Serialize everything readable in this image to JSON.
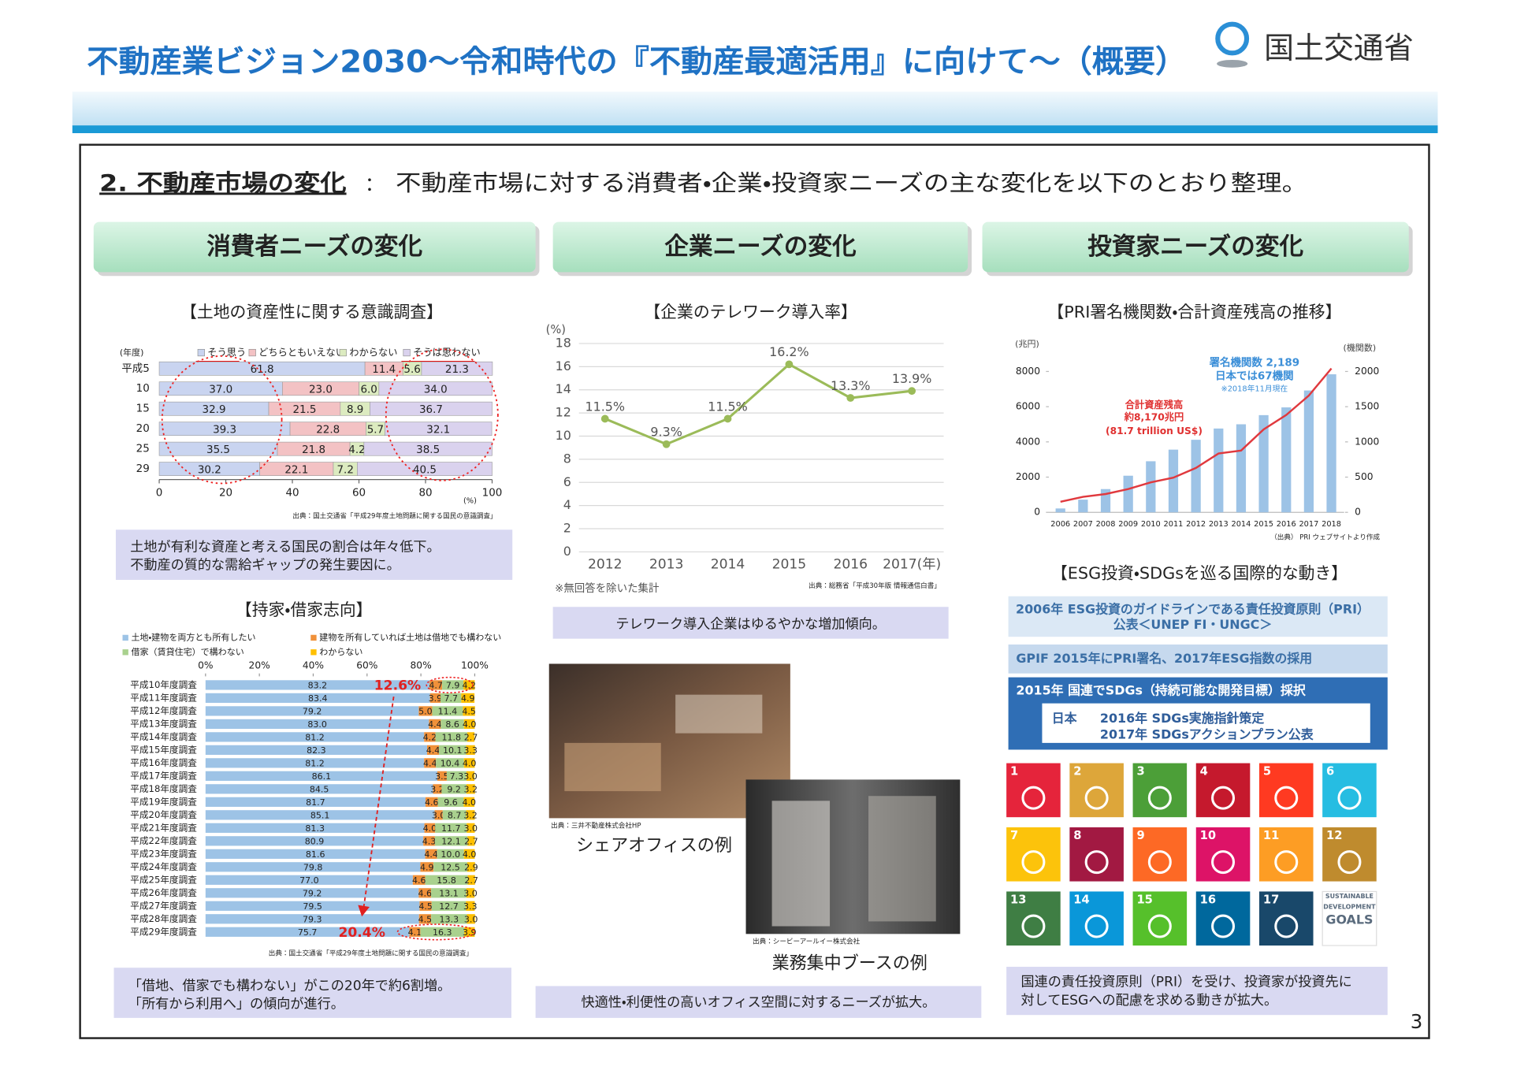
{
  "header": {
    "title": "不動産業ビジョン2030～令和時代の『不動産最適活用』に向けて～（概要）",
    "ministry": "国土交通省"
  },
  "page_number": "3",
  "section": {
    "heading": "2. 不動産市場の変化",
    "separator": "：",
    "description": "不動産市場に対する消費者・企業・投資家ニーズの主な変化を以下のとおり整理。"
  },
  "columns": [
    {
      "heading": "消費者ニーズの変化"
    },
    {
      "heading": "企業ニーズの変化"
    },
    {
      "heading": "投資家ニーズの変化"
    }
  ],
  "summaries": {
    "land": [
      "土地が有利な資産と考える国民の割合は年々低下。",
      "不動産の質的な需給ギャップの発生要因に。"
    ],
    "ownership": [
      "「借地、借家でも構わない」がこの20年で約6割増。",
      "「所有から利用へ」の傾向が進行。"
    ],
    "telework": [
      "テレワーク導入企業はゆるやかな増加傾向。"
    ],
    "office": [
      "快適性・利便性の高いオフィス空間に対するニーズが拡大。"
    ],
    "investor": [
      "国連の責任投資原則（PRI）を受け、投資家が投資先に",
      "対してESGへの配慮を求める動きが拡大。"
    ]
  },
  "photos": [
    {
      "source": "出典：三井不動産株式会社HP",
      "caption": "シェアオフィスの例"
    },
    {
      "source": "出典：シービーアールイー株式会社",
      "caption": "業務集中ブースの例"
    }
  ],
  "esg": {
    "title": "【ESG投資・SDGsを巡る国際的な動き】",
    "item1": [
      "2006年 ESG投資のガイドラインである責任投資原則（PRI）",
      "公表＜UNEP FI・UNGC＞"
    ],
    "item2": "GPIF 2015年にPRI署名、2017年ESG指数の採用",
    "item3": "2015年 国連でSDGs（持続可能な開発目標）採択",
    "japan": {
      "label": "日本",
      "lines": [
        "2016年 SDGs実施指針策定",
        "2017年 SDGsアクションプラン公表"
      ]
    },
    "sdg_goals": [
      "1",
      "2",
      "3",
      "4",
      "5",
      "6",
      "7",
      "8",
      "9",
      "10",
      "11",
      "12",
      "13",
      "14",
      "15",
      "16",
      "17"
    ],
    "sdg_logo": [
      "SUSTAINABLE",
      "DEVELOPMENT",
      "GOALS"
    ]
  },
  "chart_data": [
    {
      "type": "bar",
      "stacked": true,
      "horizontal": true,
      "title": "【土地の資産性に関する意識調査】",
      "category_label": "(年度)",
      "x_label": "(%)",
      "source": "出典：国土交通省「平成29年度土地問題に関する国民の意識調査」",
      "categories": [
        "平成5",
        "10",
        "15",
        "20",
        "25",
        "29"
      ],
      "xlim": [
        0,
        100
      ],
      "xticks": [
        0,
        20,
        40,
        60,
        80,
        100
      ],
      "series": [
        {
          "name": "そう思う",
          "color": "#c9d4f0",
          "values": [
            61.8,
            37.0,
            32.9,
            39.3,
            35.5,
            30.2
          ],
          "value_labels": [
            "61.8",
            "37.0",
            "32.9",
            "39.3",
            "35.5",
            "30.2"
          ]
        },
        {
          "name": "どちらともいえない",
          "color": "#f3c2c4",
          "values": [
            11.4,
            23.0,
            21.5,
            22.8,
            21.8,
            22.1
          ],
          "value_labels": [
            "11.4",
            "23.0",
            "21.5",
            "22.8",
            "21.8",
            "22.1"
          ]
        },
        {
          "name": "わからない",
          "color": "#dcebc0",
          "values": [
            5.6,
            6.0,
            8.9,
            5.7,
            4.2,
            7.2
          ],
          "value_labels": [
            "5.6",
            "6.0",
            "8.9",
            "5.7",
            "4.2",
            "7.2"
          ]
        },
        {
          "name": "そうは思わない",
          "color": "#dad2ee",
          "values": [
            21.3,
            34.0,
            36.7,
            32.1,
            38.5,
            40.5
          ],
          "value_labels": [
            "21.3",
            "34.0",
            "36.7",
            "32.1",
            "38.5",
            "40.5"
          ]
        }
      ]
    },
    {
      "type": "bar",
      "stacked": true,
      "horizontal": true,
      "title": "【持家・借家志向】",
      "source": "出典：国土交通省「平成29年度土地問題に関する国民の意識調査」",
      "categories": [
        "平成10年度調査",
        "平成11年度調査",
        "平成12年度調査",
        "平成13年度調査",
        "平成14年度調査",
        "平成15年度調査",
        "平成16年度調査",
        "平成17年度調査",
        "平成18年度調査",
        "平成19年度調査",
        "平成20年度調査",
        "平成21年度調査",
        "平成22年度調査",
        "平成23年度調査",
        "平成24年度調査",
        "平成25年度調査",
        "平成26年度調査",
        "平成27年度調査",
        "平成28年度調査",
        "平成29年度調査"
      ],
      "xlim": [
        0,
        100
      ],
      "xticks": [
        {
          "value": 0,
          "label": "0%"
        },
        {
          "value": 20,
          "label": "20%"
        },
        {
          "value": 40,
          "label": "40%"
        },
        {
          "value": 60,
          "label": "60%"
        },
        {
          "value": 80,
          "label": "80%"
        },
        {
          "value": 100,
          "label": "100%"
        }
      ],
      "annotations": [
        "12.6%",
        "20.4%"
      ],
      "series": [
        {
          "name": "土地・建物を両方とも所有したい",
          "color": "#9dc3e6",
          "values": [
            83.2,
            83.4,
            79.2,
            83.0,
            81.2,
            82.3,
            81.2,
            86.1,
            84.5,
            81.7,
            85.1,
            81.3,
            80.9,
            81.6,
            79.8,
            77.0,
            79.2,
            79.5,
            79.3,
            75.7
          ],
          "value_labels": [
            "83.2",
            "83.4",
            "79.2",
            "83.0",
            "81.2",
            "82.3",
            "81.2",
            "86.1",
            "84.5",
            "81.7",
            "85.1",
            "81.3",
            "80.9",
            "81.6",
            "79.8",
            "77.0",
            "79.2",
            "79.5",
            "79.3",
            "75.7"
          ]
        },
        {
          "name": "建物を所有していれば土地は借地でも構わない",
          "color": "#f0913a",
          "values": [
            4.7,
            3.9,
            5.0,
            4.4,
            4.2,
            4.4,
            4.4,
            3.5,
            3.2,
            4.6,
            3.0,
            4.0,
            4.3,
            4.4,
            4.9,
            4.6,
            4.6,
            4.5,
            4.5,
            4.1
          ],
          "value_labels": [
            "4.7",
            "3.9",
            "5.0",
            "4.4",
            "4.2",
            "4.4",
            "4.4",
            "3.5",
            "3.2",
            "4.6",
            "3.0",
            "4.0",
            "4.3",
            "4.4",
            "4.9",
            "4.6",
            "4.6",
            "4.5",
            "4.5",
            "4.1"
          ]
        },
        {
          "name": "借家（賃貸住宅）で構わない",
          "color": "#a9d18e",
          "values": [
            7.9,
            7.7,
            11.4,
            8.6,
            11.8,
            10.1,
            10.4,
            7.3,
            9.2,
            9.6,
            8.7,
            11.7,
            12.1,
            10.0,
            12.5,
            15.8,
            13.1,
            12.7,
            13.3,
            16.3
          ],
          "value_labels": [
            "7.9",
            "7.7",
            "11.4",
            "8.6",
            "11.8",
            "10.1",
            "10.4",
            "7.3",
            "9.2",
            "9.6",
            "8.7",
            "11.7",
            "12.1",
            "10.0",
            "12.5",
            "15.8",
            "13.1",
            "12.7",
            "13.3",
            "16.3"
          ]
        },
        {
          "name": "わからない",
          "color": "#ffc000",
          "values": [
            4.2,
            4.9,
            4.5,
            4.0,
            2.7,
            3.3,
            4.0,
            3.0,
            3.2,
            4.0,
            3.2,
            3.0,
            2.7,
            4.0,
            2.9,
            2.7,
            3.0,
            3.3,
            3.0,
            3.9
          ],
          "value_labels": [
            "4.2",
            "4.9",
            "4.5",
            "4.0",
            "2.7",
            "3.3",
            "4.0",
            "3.0",
            "3.2",
            "4.0",
            "3.2",
            "3.0",
            "2.7",
            "4.0",
            "2.9",
            "2.7",
            "3.0",
            "3.3",
            "3.0",
            "3.9"
          ]
        }
      ]
    },
    {
      "type": "line",
      "title": "【企業のテレワーク導入率】",
      "y_label": "(%)",
      "note": "※無回答を除いた集計",
      "source": "出典：総務省「平成30年版 情報通信白書」",
      "categories": [
        "2012",
        "2013",
        "2014",
        "2015",
        "2016",
        "2017(年)"
      ],
      "values": [
        11.5,
        9.3,
        11.5,
        16.2,
        13.3,
        13.9
      ],
      "value_labels": [
        "11.5%",
        "9.3%",
        "11.5%",
        "16.2%",
        "13.3%",
        "13.9%"
      ],
      "color": "#9bbb59",
      "ylim": [
        0,
        18
      ],
      "yticks": [
        0,
        2,
        4,
        6,
        8,
        10,
        12,
        14,
        16,
        18
      ],
      "grid": true
    },
    {
      "type": "combo",
      "title": "【PRI署名機関数・合計資産残高の推移】",
      "y_label": "(兆円)",
      "y2_label": "(機関数)",
      "source": "（出典） PRI ウェブサイトより作成",
      "annotations": [
        "署名機関数 2,189",
        "日本では67機関",
        "※2018年11月現在",
        "合計資産残高",
        "約8,170兆円",
        "(81.7 trillion US$)"
      ],
      "categories": [
        "2006",
        "2007",
        "2008",
        "2009",
        "2010",
        "2011",
        "2012",
        "2013",
        "2014",
        "2015",
        "2016",
        "2017",
        "2018"
      ],
      "ylim": [
        0,
        9600
      ],
      "yticks": [
        0,
        2000,
        4000,
        6000,
        8000
      ],
      "y2lim": [
        0,
        2400
      ],
      "y2ticks": [
        0,
        500,
        1000,
        1500,
        2000
      ],
      "series": [
        {
          "type": "bar",
          "axis": "y2",
          "color": "#9dc3e6",
          "values": [
            55,
            180,
            330,
            520,
            725,
            890,
            1030,
            1190,
            1250,
            1380,
            1490,
            1730,
            1960
          ]
        },
        {
          "type": "line",
          "color": "#e0393e",
          "values": [
            600,
            880,
            1040,
            1320,
            1700,
            1970,
            2520,
            3340,
            3510,
            4710,
            5530,
            6630,
            8170
          ]
        }
      ]
    }
  ]
}
